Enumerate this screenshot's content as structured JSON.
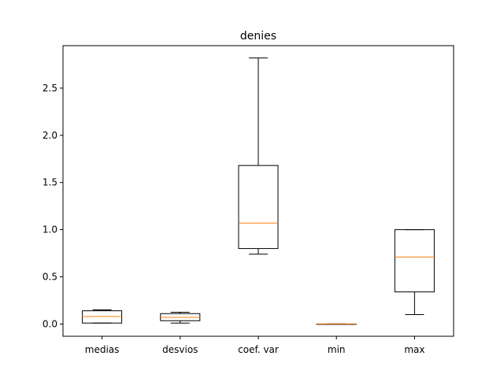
{
  "chart_data": {
    "type": "box",
    "title": "denies",
    "xlabel": "",
    "ylabel": "",
    "categories": [
      "medias",
      "desvios",
      "coef. var",
      "min",
      "max"
    ],
    "boxes": [
      {
        "whislo": 0.01,
        "q1": 0.01,
        "med": 0.08,
        "q3": 0.14,
        "whishi": 0.15
      },
      {
        "whislo": 0.01,
        "q1": 0.035,
        "med": 0.07,
        "q3": 0.11,
        "whishi": 0.125
      },
      {
        "whislo": 0.74,
        "q1": 0.8,
        "med": 1.07,
        "q3": 1.68,
        "whishi": 2.82
      },
      {
        "whislo": 0.0,
        "q1": 0.0,
        "med": 0.0,
        "q3": 0.0,
        "whishi": 0.0
      },
      {
        "whislo": 0.1,
        "q1": 0.34,
        "med": 0.71,
        "q3": 1.0,
        "whishi": 1.0
      }
    ],
    "yticks": [
      0.0,
      0.5,
      1.0,
      1.5,
      2.0,
      2.5
    ],
    "ytick_labels": [
      "0.0",
      "0.5",
      "1.0",
      "1.5",
      "2.0",
      "2.5"
    ],
    "ylim": [
      -0.13,
      2.95
    ],
    "grid": false,
    "colors": {
      "box": "#000000",
      "median": "#ff7f0e"
    }
  }
}
